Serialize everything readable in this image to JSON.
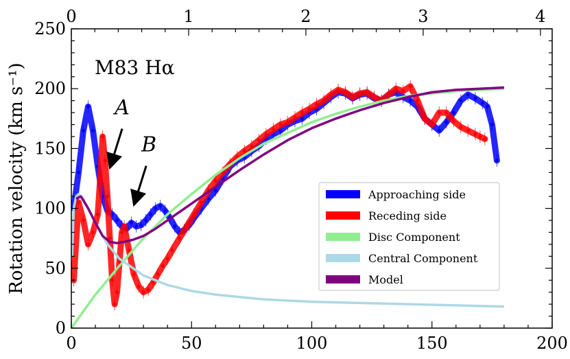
{
  "chart_data": {
    "type": "line",
    "title": "",
    "panel_label": "M83 Hα",
    "ylabel": "Rotation velocity (km s⁻¹)",
    "xlabel": "",
    "top_xlabel": "",
    "xlim": [
      0,
      200
    ],
    "ylim": [
      0,
      250
    ],
    "x_ticks": [
      0,
      50,
      100,
      150,
      200
    ],
    "y_ticks": [
      0,
      50,
      100,
      150,
      200,
      250
    ],
    "top_xlim": [
      0,
      4.1
    ],
    "top_x_ticks": [
      0,
      1,
      2,
      3,
      4
    ],
    "grid": false,
    "legend_position": "lower-right",
    "annotations": [
      {
        "label": "A",
        "x": 16,
        "y": 135
      },
      {
        "label": "B",
        "x": 26,
        "y": 104
      }
    ],
    "series": [
      {
        "name": "Approaching side",
        "color": "#0000ff",
        "style": "errorbar-points",
        "x": [
          1,
          3,
          5,
          7,
          9,
          11,
          13,
          15,
          17,
          19,
          21,
          23,
          25,
          27,
          29,
          31,
          33,
          35,
          37,
          39,
          41,
          43,
          45,
          47,
          49,
          51,
          54,
          57,
          60,
          63,
          66,
          69,
          72,
          75,
          78,
          81,
          84,
          87,
          90,
          93,
          96,
          99,
          102,
          105,
          108,
          111,
          114,
          117,
          120,
          123,
          126,
          129,
          132,
          135,
          138,
          141,
          144,
          147,
          150,
          153,
          156,
          159,
          162,
          165,
          168,
          171,
          173,
          175,
          177
        ],
        "y": [
          100,
          130,
          165,
          185,
          165,
          135,
          110,
          98,
          95,
          90,
          85,
          83,
          88,
          85,
          86,
          90,
          95,
          100,
          102,
          98,
          92,
          85,
          80,
          82,
          86,
          92,
          100,
          108,
          115,
          125,
          135,
          140,
          143,
          148,
          152,
          158,
          162,
          165,
          170,
          173,
          175,
          180,
          183,
          188,
          193,
          197,
          196,
          192,
          195,
          196,
          192,
          190,
          195,
          197,
          193,
          190,
          185,
          175,
          170,
          165,
          172,
          180,
          190,
          195,
          192,
          188,
          185,
          170,
          140
        ]
      },
      {
        "name": "Receding side",
        "color": "#ff0000",
        "style": "errorbar-points",
        "x": [
          1,
          3,
          5,
          7,
          9,
          11,
          12,
          13,
          14,
          15,
          16,
          17,
          18,
          19,
          20,
          21,
          22,
          24,
          26,
          28,
          30,
          32,
          34,
          36,
          38,
          40,
          42,
          45,
          48,
          51,
          54,
          57,
          60,
          63,
          66,
          69,
          72,
          75,
          78,
          81,
          84,
          87,
          90,
          93,
          96,
          99,
          102,
          105,
          108,
          111,
          114,
          117,
          120,
          123,
          126,
          129,
          132,
          135,
          138,
          141,
          144,
          147,
          150,
          153,
          156,
          159,
          162,
          165,
          168,
          170,
          172
        ],
        "y": [
          40,
          105,
          90,
          70,
          80,
          95,
          125,
          160,
          140,
          110,
          75,
          40,
          20,
          30,
          55,
          80,
          85,
          65,
          45,
          35,
          30,
          32,
          38,
          45,
          52,
          58,
          65,
          75,
          85,
          95,
          105,
          115,
          123,
          130,
          137,
          143,
          148,
          152,
          157,
          162,
          166,
          170,
          172,
          176,
          180,
          183,
          187,
          190,
          195,
          199,
          197,
          193,
          196,
          197,
          193,
          190,
          195,
          200,
          198,
          202,
          190,
          175,
          170,
          180,
          180,
          173,
          168,
          165,
          162,
          160,
          158
        ]
      },
      {
        "name": "Disc Component",
        "color": "#90ee90",
        "style": "line",
        "x": [
          0,
          10,
          20,
          30,
          40,
          50,
          60,
          70,
          80,
          90,
          100,
          110,
          120,
          130,
          140,
          150,
          160,
          170,
          180
        ],
        "y": [
          0,
          28,
          52,
          75,
          95,
          112,
          128,
          142,
          154,
          163,
          172,
          179,
          185,
          190,
          194,
          196,
          198,
          199,
          200
        ]
      },
      {
        "name": "Central Component",
        "color": "#add8e6",
        "style": "line",
        "x": [
          0.3,
          1,
          2,
          3,
          5,
          8,
          10,
          15,
          20,
          30,
          40,
          50,
          60,
          80,
          100,
          120,
          140,
          160,
          180
        ],
        "y": [
          60,
          100,
          110,
          112,
          108,
          96,
          88,
          70,
          58,
          44,
          36,
          31,
          28,
          24,
          22,
          21,
          20,
          19,
          18
        ]
      },
      {
        "name": "Model",
        "color": "#800080",
        "style": "line",
        "x": [
          2,
          4,
          7,
          10,
          13,
          16,
          19,
          22,
          26,
          30,
          35,
          40,
          45,
          50,
          55,
          60,
          70,
          80,
          90,
          100,
          110,
          120,
          130,
          140,
          150,
          160,
          170,
          180
        ],
        "y": [
          108,
          110,
          100,
          88,
          77,
          72,
          71,
          72,
          74,
          77,
          83,
          90,
          97,
          104,
          111,
          118,
          132,
          145,
          157,
          167,
          175,
          182,
          188,
          193,
          197,
          199,
          200,
          201
        ]
      }
    ]
  }
}
